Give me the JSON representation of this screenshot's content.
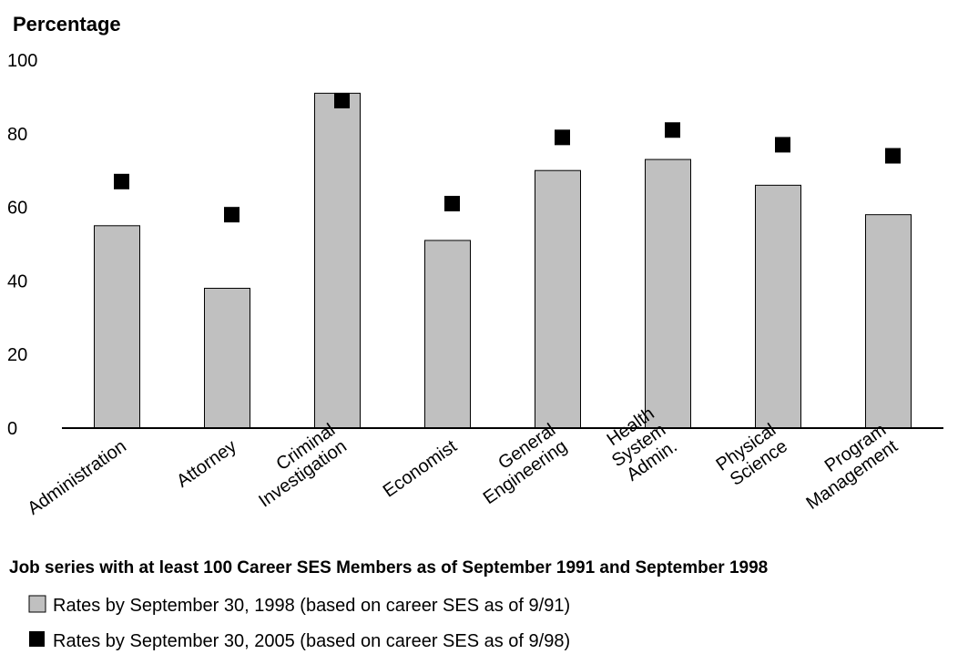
{
  "chart_data": {
    "type": "bar",
    "ylabel": "Percentage",
    "xlabel": "Job series with at least 100 Career SES Members as of September 1991 and September 1998",
    "ylim": [
      0,
      100
    ],
    "yticks": [
      0,
      20,
      40,
      60,
      80,
      100
    ],
    "grid": false,
    "legend_position": "bottom-left",
    "categories": [
      [
        "Administration"
      ],
      [
        "Attorney"
      ],
      [
        "Criminal",
        "Investigation"
      ],
      [
        "Economist"
      ],
      [
        "General",
        "Engineering"
      ],
      [
        "Health",
        "System",
        "Admin."
      ],
      [
        "Physical",
        "Science"
      ],
      [
        "Program",
        "Management"
      ]
    ],
    "series": [
      {
        "name": "Rates by September 30, 1998 (based on career SES as of 9/91)",
        "kind": "bar",
        "color": "#c0c0c0",
        "values": [
          55,
          38,
          91,
          51,
          70,
          73,
          66,
          58
        ]
      },
      {
        "name": "Rates by September 30, 2005 (based on career SES as of 9/98)",
        "kind": "marker",
        "color": "#000000",
        "values": [
          67,
          58,
          89,
          61,
          79,
          81,
          77,
          74
        ]
      }
    ]
  }
}
